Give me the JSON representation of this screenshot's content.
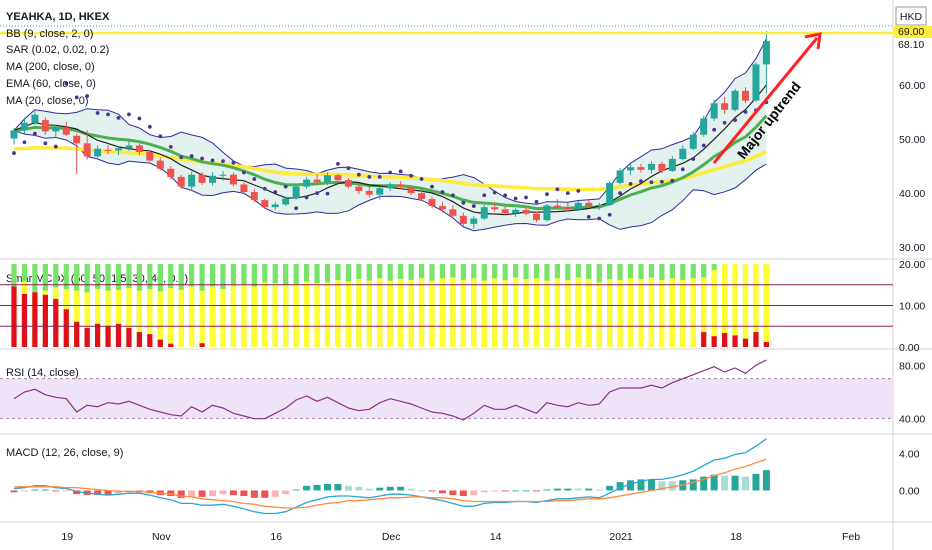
{
  "chart_data": {
    "type": "candlestick",
    "symbol": "YEAHKA, 1D, HKEX",
    "currency": "HKD",
    "last_price": "68.10",
    "price_level": "69.00",
    "annotation": "Major uptrend",
    "xticks": [
      "19",
      "Nov",
      "16",
      "Dec",
      "14",
      "2021",
      "18",
      "Feb"
    ],
    "price_axis": {
      "ticks": [
        "60.00",
        "50.00",
        "40.00",
        "30.00"
      ],
      "range": [
        28,
        72
      ]
    },
    "indicators": {
      "bb": "BB (9, close, 2, 0)",
      "sar": "SAR (0.02, 0.02, 0.2)",
      "ma200": "MA (200, close, 0)",
      "ema60": "EMA (60, close, 0)",
      "ma20": "MA (20, close, 0)"
    },
    "colors": {
      "up": "#26a69a",
      "down": "#ef5350",
      "bb": "#2f2aa0",
      "bb_fill": "#e3f2ee",
      "sar": "#4a3594",
      "ma": "#ffeb3b",
      "ema": "#4caf50",
      "ma20": "#222222",
      "smart_green": "#76e36a",
      "smart_yellow": "#ffff33",
      "smart_red": "#e10e1c",
      "smart_line": "#8e1e53",
      "rsi_line": "#8e2f8e",
      "rsi_band": "#efe3f7",
      "macd_line": "#2aa6d6",
      "signal_line": "#ff8a3d",
      "hist_up": "#26a69a",
      "hist_down": "#ef5350",
      "arrow": "#ff2222"
    },
    "candles": [
      [
        50.1,
        52.0,
        49.0,
        51.6
      ],
      [
        51.6,
        53.6,
        51.0,
        53.0
      ],
      [
        53.0,
        55.2,
        52.6,
        54.5
      ],
      [
        53.5,
        54.0,
        50.8,
        51.4
      ],
      [
        51.4,
        52.6,
        50.2,
        52.2
      ],
      [
        52.1,
        53.2,
        50.6,
        50.8
      ],
      [
        50.6,
        51.0,
        43.5,
        49.2
      ],
      [
        49.2,
        51.6,
        46.2,
        46.8
      ],
      [
        46.8,
        48.8,
        46.2,
        48.2
      ],
      [
        48.0,
        48.9,
        47.2,
        47.9
      ],
      [
        47.9,
        48.6,
        47.0,
        48.3
      ],
      [
        48.3,
        49.6,
        47.8,
        48.8
      ],
      [
        48.8,
        49.2,
        47.0,
        47.6
      ],
      [
        47.6,
        48.0,
        45.8,
        46.0
      ],
      [
        46.0,
        46.6,
        44.2,
        44.5
      ],
      [
        44.5,
        45.0,
        42.6,
        43.0
      ],
      [
        43.0,
        43.4,
        40.8,
        41.2
      ],
      [
        41.2,
        44.0,
        40.4,
        43.4
      ],
      [
        43.4,
        43.9,
        41.5,
        41.9
      ],
      [
        41.9,
        43.9,
        41.4,
        43.2
      ],
      [
        43.2,
        44.1,
        42.3,
        43.4
      ],
      [
        43.4,
        43.8,
        41.3,
        41.6
      ],
      [
        41.6,
        42.0,
        39.9,
        40.2
      ],
      [
        40.2,
        40.8,
        38.3,
        38.7
      ],
      [
        38.7,
        39.0,
        37.1,
        37.4
      ],
      [
        37.4,
        38.4,
        36.9,
        37.9
      ],
      [
        37.9,
        39.4,
        37.6,
        39.0
      ],
      [
        39.0,
        41.6,
        38.8,
        41.2
      ],
      [
        41.2,
        43.0,
        40.8,
        42.5
      ],
      [
        42.5,
        43.5,
        41.6,
        42.0
      ],
      [
        42.0,
        43.8,
        41.5,
        43.3
      ],
      [
        43.3,
        43.6,
        41.8,
        42.4
      ],
      [
        42.4,
        42.8,
        40.8,
        41.2
      ],
      [
        41.2,
        41.6,
        39.8,
        40.4
      ],
      [
        40.4,
        41.2,
        39.2,
        39.7
      ],
      [
        39.7,
        41.2,
        38.8,
        40.9
      ],
      [
        40.9,
        42.0,
        40.4,
        41.6
      ],
      [
        41.6,
        42.2,
        40.8,
        41.1
      ],
      [
        41.1,
        41.4,
        39.6,
        40.0
      ],
      [
        40.0,
        40.8,
        38.6,
        38.9
      ],
      [
        38.9,
        39.4,
        37.2,
        37.6
      ],
      [
        37.6,
        38.4,
        36.4,
        37.0
      ],
      [
        37.0,
        37.8,
        35.4,
        35.8
      ],
      [
        35.8,
        36.4,
        33.9,
        34.3
      ],
      [
        34.3,
        35.8,
        33.4,
        35.3
      ],
      [
        35.3,
        37.8,
        35.0,
        37.4
      ],
      [
        37.4,
        38.3,
        36.6,
        37.0
      ],
      [
        37.0,
        37.8,
        35.9,
        36.3
      ],
      [
        36.3,
        37.2,
        35.6,
        36.9
      ],
      [
        36.9,
        37.4,
        35.9,
        36.2
      ],
      [
        36.2,
        36.6,
        34.6,
        35.0
      ],
      [
        35.0,
        38.0,
        34.8,
        37.7
      ],
      [
        37.7,
        38.9,
        37.0,
        37.4
      ],
      [
        37.4,
        38.2,
        36.6,
        37.0
      ],
      [
        37.0,
        38.6,
        36.7,
        38.2
      ],
      [
        38.2,
        38.7,
        37.2,
        37.6
      ],
      [
        37.6,
        38.2,
        36.9,
        37.8
      ],
      [
        37.8,
        42.2,
        37.6,
        41.9
      ],
      [
        41.9,
        44.6,
        41.6,
        44.2
      ],
      [
        44.2,
        45.4,
        43.3,
        44.8
      ],
      [
        44.8,
        45.4,
        43.8,
        44.3
      ],
      [
        44.3,
        45.9,
        43.6,
        45.4
      ],
      [
        45.4,
        45.8,
        43.7,
        44.1
      ],
      [
        44.1,
        46.8,
        43.9,
        46.3
      ],
      [
        46.3,
        48.8,
        46.0,
        48.2
      ],
      [
        48.2,
        51.3,
        47.9,
        50.8
      ],
      [
        50.8,
        54.3,
        50.4,
        53.8
      ],
      [
        53.8,
        57.3,
        53.3,
        56.6
      ],
      [
        56.6,
        57.8,
        54.6,
        55.4
      ],
      [
        55.4,
        59.3,
        55.1,
        58.9
      ],
      [
        58.9,
        59.6,
        56.6,
        57.1
      ],
      [
        57.1,
        64.2,
        56.9,
        63.8
      ],
      [
        63.8,
        70.0,
        58.4,
        68.1
      ]
    ],
    "smart": [
      [
        20,
        14.6,
        14.6
      ],
      [
        20,
        15.8,
        12.8
      ],
      [
        20,
        13.2,
        13.2
      ],
      [
        20,
        13.6,
        12.6
      ],
      [
        20,
        14.4,
        11.6
      ],
      [
        20,
        14.0,
        9.1
      ],
      [
        20,
        13.6,
        6.1
      ],
      [
        20,
        13.2,
        4.6
      ],
      [
        20,
        14.0,
        5.6
      ],
      [
        20,
        13.6,
        5.1
      ],
      [
        20,
        13.8,
        5.6
      ],
      [
        20,
        14.2,
        4.6
      ],
      [
        20,
        13.6,
        3.6
      ],
      [
        20,
        14.0,
        3.1
      ],
      [
        20,
        13.4,
        1.8
      ],
      [
        20,
        14.2,
        0.8
      ],
      [
        20,
        13.8,
        0.0
      ],
      [
        20,
        14.6,
        0.0
      ],
      [
        20,
        13.6,
        0.9
      ],
      [
        20,
        14.6,
        0.0
      ],
      [
        20,
        14.0,
        0.0
      ],
      [
        20,
        14.8,
        0.0
      ],
      [
        20,
        15.0,
        0.0
      ],
      [
        20,
        14.6,
        0.0
      ],
      [
        20,
        15.6,
        0.0
      ],
      [
        20,
        15.4,
        0.0
      ],
      [
        20,
        15.0,
        0.0
      ],
      [
        20,
        15.2,
        0.0
      ],
      [
        20,
        15.8,
        0.0
      ],
      [
        20,
        15.4,
        0.0
      ],
      [
        20,
        15.6,
        0.0
      ],
      [
        20,
        16.2,
        0.0
      ],
      [
        20,
        15.8,
        0.0
      ],
      [
        20,
        16.4,
        0.0
      ],
      [
        20,
        16.0,
        0.0
      ],
      [
        20,
        16.6,
        0.0
      ],
      [
        20,
        16.0,
        0.0
      ],
      [
        20,
        16.4,
        0.0
      ],
      [
        20,
        16.2,
        0.0
      ],
      [
        20,
        16.6,
        0.0
      ],
      [
        20,
        16.0,
        0.0
      ],
      [
        20,
        16.6,
        0.0
      ],
      [
        20,
        16.8,
        0.0
      ],
      [
        20,
        16.2,
        0.0
      ],
      [
        20,
        16.6,
        0.0
      ],
      [
        20,
        16.0,
        0.0
      ],
      [
        20,
        16.6,
        0.0
      ],
      [
        20,
        16.2,
        0.0
      ],
      [
        20,
        16.8,
        0.0
      ],
      [
        20,
        16.4,
        0.0
      ],
      [
        20,
        16.6,
        0.0
      ],
      [
        20,
        16.0,
        0.0
      ],
      [
        20,
        16.6,
        0.0
      ],
      [
        20,
        16.2,
        0.0
      ],
      [
        20,
        16.8,
        0.0
      ],
      [
        20,
        16.4,
        0.0
      ],
      [
        20,
        15.6,
        0.0
      ],
      [
        20,
        16.4,
        0.0
      ],
      [
        20,
        16.2,
        0.0
      ],
      [
        20,
        16.6,
        0.0
      ],
      [
        20,
        16.4,
        0.0
      ],
      [
        20,
        16.8,
        0.0
      ],
      [
        20,
        16.2,
        0.0
      ],
      [
        20,
        16.6,
        0.0
      ],
      [
        20,
        16.2,
        0.0
      ],
      [
        20,
        16.6,
        0.0
      ],
      [
        20,
        16.8,
        0.0
      ],
      [
        20,
        18.6,
        0.0
      ],
      [
        20,
        20,
        0.0
      ],
      [
        20,
        20,
        0.0
      ],
      [
        20,
        20,
        0.0
      ],
      [
        20,
        20,
        0.0
      ],
      [
        20,
        20,
        0.0
      ]
    ],
    "smart_red_extra": {
      "66": 3.6,
      "67": 2.6,
      "68": 3.4,
      "69": 2.8,
      "70": 2.0,
      "71": 3.6,
      "72": 1.2,
      "73": 6.1,
      "74": 11.6,
      "75": 14.2,
      "76": 13.2,
      "77": 16.2,
      "78": 20
    },
    "smart_axis": {
      "ticks": [
        "20.00",
        "10.00",
        "0.00"
      ],
      "range": [
        0,
        20.5
      ],
      "levels": [
        15,
        10,
        5
      ]
    },
    "rsi_axis": {
      "ticks": [
        "80.00",
        "40.00"
      ],
      "range": [
        30,
        90
      ],
      "band": [
        70,
        40
      ]
    },
    "rsi": [
      55,
      60,
      62,
      58,
      56,
      55,
      45,
      50,
      49,
      52,
      51,
      53,
      50,
      47,
      45,
      43,
      42,
      49,
      45,
      50,
      48,
      44,
      42,
      40,
      40,
      44,
      48,
      54,
      57,
      53,
      56,
      52,
      48,
      46,
      47,
      52,
      55,
      53,
      51,
      48,
      45,
      44,
      42,
      39,
      44,
      50,
      47,
      47,
      50,
      47,
      44,
      52,
      50,
      49,
      52,
      50,
      51,
      60,
      63,
      63,
      63,
      65,
      63,
      67,
      70,
      73,
      76,
      79,
      75,
      78,
      74,
      80,
      84
    ],
    "macd_axis": {
      "ticks": [
        "4.00",
        "0.00"
      ],
      "range": [
        -3.2,
        5.9
      ]
    },
    "macd": [
      0.2,
      0.3,
      0.5,
      0.5,
      0.3,
      0.2,
      -0.1,
      -0.3,
      -0.4,
      -0.5,
      -0.4,
      -0.3,
      -0.3,
      -0.5,
      -0.8,
      -1.0,
      -1.4,
      -1.4,
      -1.6,
      -1.6,
      -1.5,
      -1.7,
      -2.0,
      -2.3,
      -2.5,
      -2.5,
      -2.3,
      -1.8,
      -1.3,
      -1.0,
      -0.7,
      -0.6,
      -0.6,
      -0.7,
      -0.8,
      -0.6,
      -0.4,
      -0.4,
      -0.5,
      -0.7,
      -0.9,
      -1.1,
      -1.4,
      -1.7,
      -1.7,
      -1.4,
      -1.3,
      -1.3,
      -1.2,
      -1.2,
      -1.3,
      -1.1,
      -0.9,
      -0.9,
      -0.8,
      -0.7,
      -0.8,
      -0.3,
      0.3,
      0.7,
      1.0,
      1.2,
      1.2,
      1.4,
      1.7,
      2.1,
      2.7,
      3.3,
      3.5,
      3.9,
      4.1,
      4.8,
      5.6
    ],
    "signal": [
      0.4,
      0.4,
      0.4,
      0.4,
      0.4,
      0.3,
      0.3,
      0.2,
      0.1,
      0.0,
      -0.1,
      -0.1,
      -0.1,
      -0.2,
      -0.3,
      -0.4,
      -0.6,
      -0.7,
      -0.9,
      -1.0,
      -1.1,
      -1.2,
      -1.4,
      -1.5,
      -1.7,
      -1.8,
      -1.9,
      -1.9,
      -1.8,
      -1.6,
      -1.4,
      -1.3,
      -1.1,
      -1.1,
      -1.0,
      -0.9,
      -0.8,
      -0.8,
      -0.7,
      -0.7,
      -0.8,
      -0.8,
      -0.9,
      -1.1,
      -1.2,
      -1.2,
      -1.2,
      -1.2,
      -1.2,
      -1.2,
      -1.2,
      -1.2,
      -1.1,
      -1.1,
      -1.0,
      -0.9,
      -0.9,
      -0.8,
      -0.6,
      -0.4,
      -0.2,
      0.0,
      0.2,
      0.4,
      0.6,
      0.9,
      1.2,
      1.6,
      1.9,
      2.3,
      2.6,
      3.0,
      3.4
    ]
  }
}
